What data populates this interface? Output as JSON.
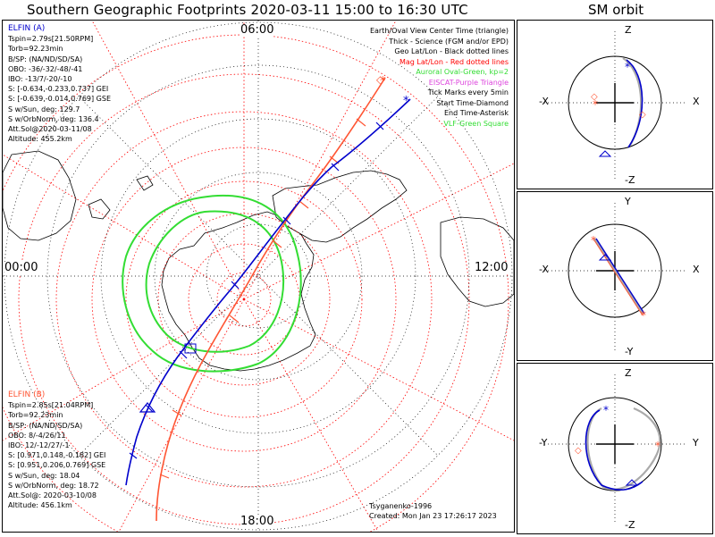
{
  "title": "Southern Geographic Footprints 2020-03-11 15:00 to 16:30 UTC",
  "sm_title": "SM orbit",
  "hour_labels": {
    "top": "06:00",
    "left": "00:00",
    "right": "12:00",
    "bottom": "18:00"
  },
  "legend": [
    {
      "text": "Earth/Oval View Center Time (triangle)",
      "color": "#000000"
    },
    {
      "text": "Thick - Science (FGM and/or EPD)",
      "color": "#000000"
    },
    {
      "text": "Geo Lat/Lon - Black dotted lines",
      "color": "#000000"
    },
    {
      "text": "Mag Lat/Lon - Red dotted lines",
      "color": "#ff0000"
    },
    {
      "text": "Auroral Oval-Green, kp=2",
      "color": "#33dd33"
    },
    {
      "text": "EISCAT-Purple Triangle",
      "color": "#dd44dd"
    },
    {
      "text": "Tick Marks every 5min",
      "color": "#000000"
    },
    {
      "text": "Start Time-Diamond",
      "color": "#000000"
    },
    {
      "text": "End Time-Asterisk",
      "color": "#000000"
    },
    {
      "text": "VLF-Green Square",
      "color": "#33dd33"
    }
  ],
  "elfin_a": {
    "name": "ELFIN (A)",
    "color": "#0000cc",
    "lines": [
      "Tspin=2.79s[21.50RPM]",
      "Torb=92.23min",
      "B/SP: (NA/ND/SD/SA)",
      "OBO: -36/-32/-48/-41",
      "IBO: -13/7/-20/-10",
      "S: [-0.634,-0.233,0.737] GEI",
      "S: [-0.639,-0.014,0.769] GSE",
      "S w/Sun, deg: 129.7",
      "S w/OrbNorm, deg: 136.4",
      "Att.Sol@2020-03-11/08",
      "Altitude: 455.2km"
    ]
  },
  "elfin_b": {
    "name": "ELFIN (B)",
    "color": "#ff5533",
    "lines": [
      "Tspin=2.85s[21.04RPM]",
      "Torb=92.23min",
      "B/SP: (NA/ND/SD/SA)",
      "OBO: 8/-4/26/11",
      "IBO: 12/-12/27/-1",
      "S: [0.971,0.148,-0.182] GEI",
      "S: [0.951,0.206,0.769] GSE",
      "S w/Sun, deg: 18.04",
      "S w/OrbNorm, deg: 18.72",
      "Att.Sol@: 2020-03-10/08",
      "Altitude: 456.1km"
    ]
  },
  "credits": {
    "author": "Tsyganenko-1996",
    "created": "Created: Mon Jan 23 17:26:17 2023"
  },
  "sm_panels": [
    {
      "top": "Z",
      "bottom": "-Z",
      "left": "-X",
      "right": "X"
    },
    {
      "top": "Y",
      "bottom": "-Y",
      "left": "-X",
      "right": "X"
    },
    {
      "top": "Z",
      "bottom": "-Z",
      "left": "-Y",
      "right": "Y"
    }
  ],
  "colors": {
    "elfin_a": "#0000cc",
    "elfin_b": "#ff5533",
    "auroral_oval": "#33dd33",
    "mag_grid": "#ff0000",
    "geo_grid": "#000000"
  }
}
